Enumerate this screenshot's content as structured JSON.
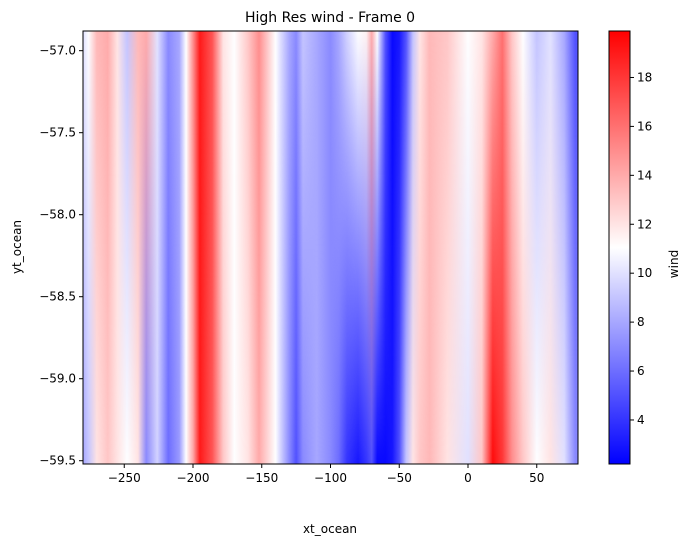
{
  "chart_data": {
    "type": "heatmap",
    "title": "High Res wind - Frame 0",
    "xlabel": "xt_ocean",
    "ylabel": "yt_ocean",
    "xlim": [
      -280,
      80
    ],
    "ylim": [
      -59.52,
      -56.88
    ],
    "x_ticks": [
      -250,
      -200,
      -150,
      -100,
      -50,
      0,
      50
    ],
    "x_tick_labels": [
      "−250",
      "−200",
      "−150",
      "−100",
      "−50",
      "0",
      "50"
    ],
    "y_ticks": [
      -57.0,
      -57.5,
      -58.0,
      -58.5,
      -59.0,
      -59.5
    ],
    "y_tick_labels": [
      "−57.0",
      "−57.5",
      "−58.0",
      "−58.5",
      "−59.0",
      "−59.5"
    ],
    "colorbar": {
      "label": "wind",
      "colormap": "bwr",
      "range": [
        2.2,
        19.9
      ],
      "ticks": [
        4,
        6,
        8,
        10,
        12,
        14,
        16,
        18
      ],
      "tick_labels": [
        "4",
        "6",
        "8",
        "10",
        "12",
        "14",
        "16",
        "18"
      ],
      "min_color": "#0000ff",
      "mid_color": "#ffffff",
      "max_color": "#ff0000"
    },
    "wind_profile": {
      "x": [
        -280,
        -276,
        -270,
        -262,
        -255,
        -248,
        -240,
        -234,
        -226,
        -218,
        -210,
        -205,
        -200,
        -195,
        -186,
        -178,
        -170,
        -160,
        -152,
        -140,
        -130,
        -125,
        -120,
        -110,
        -100,
        -94,
        -88,
        -80,
        -74,
        -70,
        -66,
        -60,
        -55,
        -50,
        -45,
        -40,
        -35,
        -28,
        -15,
        0,
        10,
        18,
        25,
        32,
        40,
        50,
        60,
        70,
        78,
        80
      ],
      "wind_top": [
        10,
        11,
        13.5,
        14,
        12,
        9,
        13.5,
        14,
        10,
        7,
        8,
        11,
        15,
        19,
        17,
        12,
        11,
        13,
        15,
        11,
        8,
        7,
        9,
        8,
        7,
        8,
        9.5,
        11,
        11.5,
        14,
        11,
        5,
        2.5,
        3,
        5,
        9,
        12,
        13.5,
        13,
        11,
        12,
        14,
        16,
        13,
        11,
        9,
        10,
        8,
        5,
        5
      ],
      "wind_bottom": [
        8,
        9,
        12,
        13,
        12,
        11,
        12,
        7,
        9.5,
        6,
        7.5,
        11,
        14,
        19,
        17,
        13,
        11,
        12,
        14,
        11,
        7,
        5,
        7,
        8,
        7,
        6,
        4,
        3,
        4,
        5,
        2.5,
        2.5,
        3,
        5,
        9,
        12,
        13,
        13.5,
        12,
        10,
        13,
        19.5,
        18,
        15,
        13,
        11,
        12,
        10,
        7,
        7
      ]
    }
  }
}
